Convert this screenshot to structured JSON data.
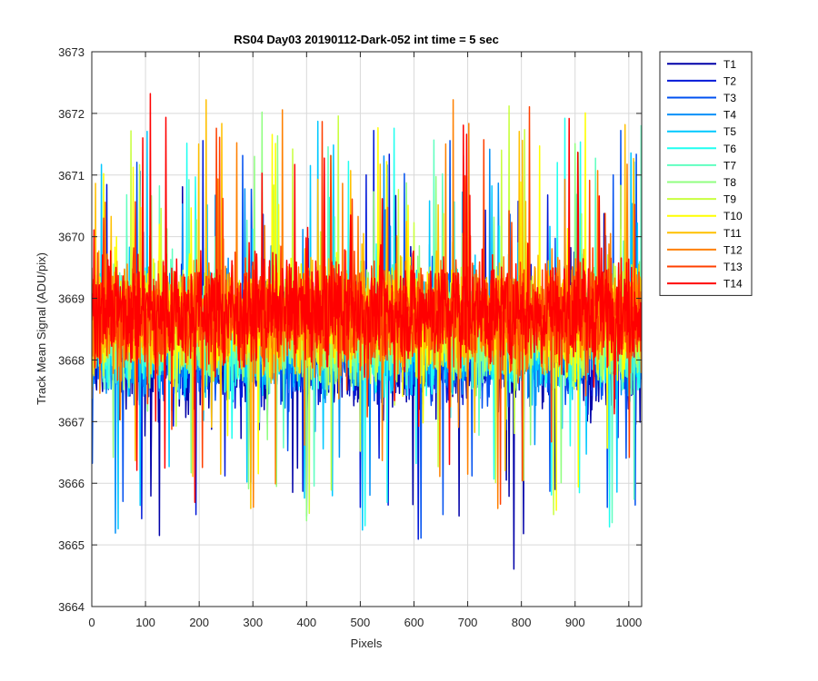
{
  "chart_data": {
    "type": "line",
    "title": "RS04 Day03 20190112-Dark-052 int time = 5 sec",
    "xlabel": "Pixels",
    "ylabel": "Track Mean Signal (ADU/pix)",
    "xlim": [
      0,
      1024
    ],
    "ylim": [
      3664,
      3673
    ],
    "xticks": [
      0,
      100,
      200,
      300,
      400,
      500,
      600,
      700,
      800,
      900,
      1000
    ],
    "yticks": [
      3664,
      3665,
      3666,
      3667,
      3668,
      3669,
      3670,
      3671,
      3672,
      3673
    ],
    "grid": true,
    "legend_position": "outside-top-right",
    "n_points": 1024,
    "series": [
      {
        "name": "T1",
        "color": "#0000A8",
        "mean": 3668.1,
        "spread": 0.95
      },
      {
        "name": "T2",
        "color": "#0018D8",
        "mean": 3668.2,
        "spread": 0.95
      },
      {
        "name": "T3",
        "color": "#0050F0",
        "mean": 3668.2,
        "spread": 0.95
      },
      {
        "name": "T4",
        "color": "#0090F8",
        "mean": 3668.3,
        "spread": 0.95
      },
      {
        "name": "T5",
        "color": "#00C8FF",
        "mean": 3668.35,
        "spread": 0.95
      },
      {
        "name": "T6",
        "color": "#20FFF0",
        "mean": 3668.4,
        "spread": 0.95
      },
      {
        "name": "T7",
        "color": "#60FFC0",
        "mean": 3668.45,
        "spread": 0.95
      },
      {
        "name": "T8",
        "color": "#90FF80",
        "mean": 3668.5,
        "spread": 0.95
      },
      {
        "name": "T9",
        "color": "#C8FF40",
        "mean": 3668.6,
        "spread": 0.95
      },
      {
        "name": "T10",
        "color": "#FFFF00",
        "mean": 3668.65,
        "spread": 0.95
      },
      {
        "name": "T11",
        "color": "#FFC000",
        "mean": 3668.7,
        "spread": 0.95
      },
      {
        "name": "T12",
        "color": "#FF8000",
        "mean": 3668.7,
        "spread": 0.95
      },
      {
        "name": "T13",
        "color": "#FF4000",
        "mean": 3668.75,
        "spread": 0.95
      },
      {
        "name": "T14",
        "color": "#FF0000",
        "mean": 3668.8,
        "spread": 0.95
      }
    ]
  }
}
